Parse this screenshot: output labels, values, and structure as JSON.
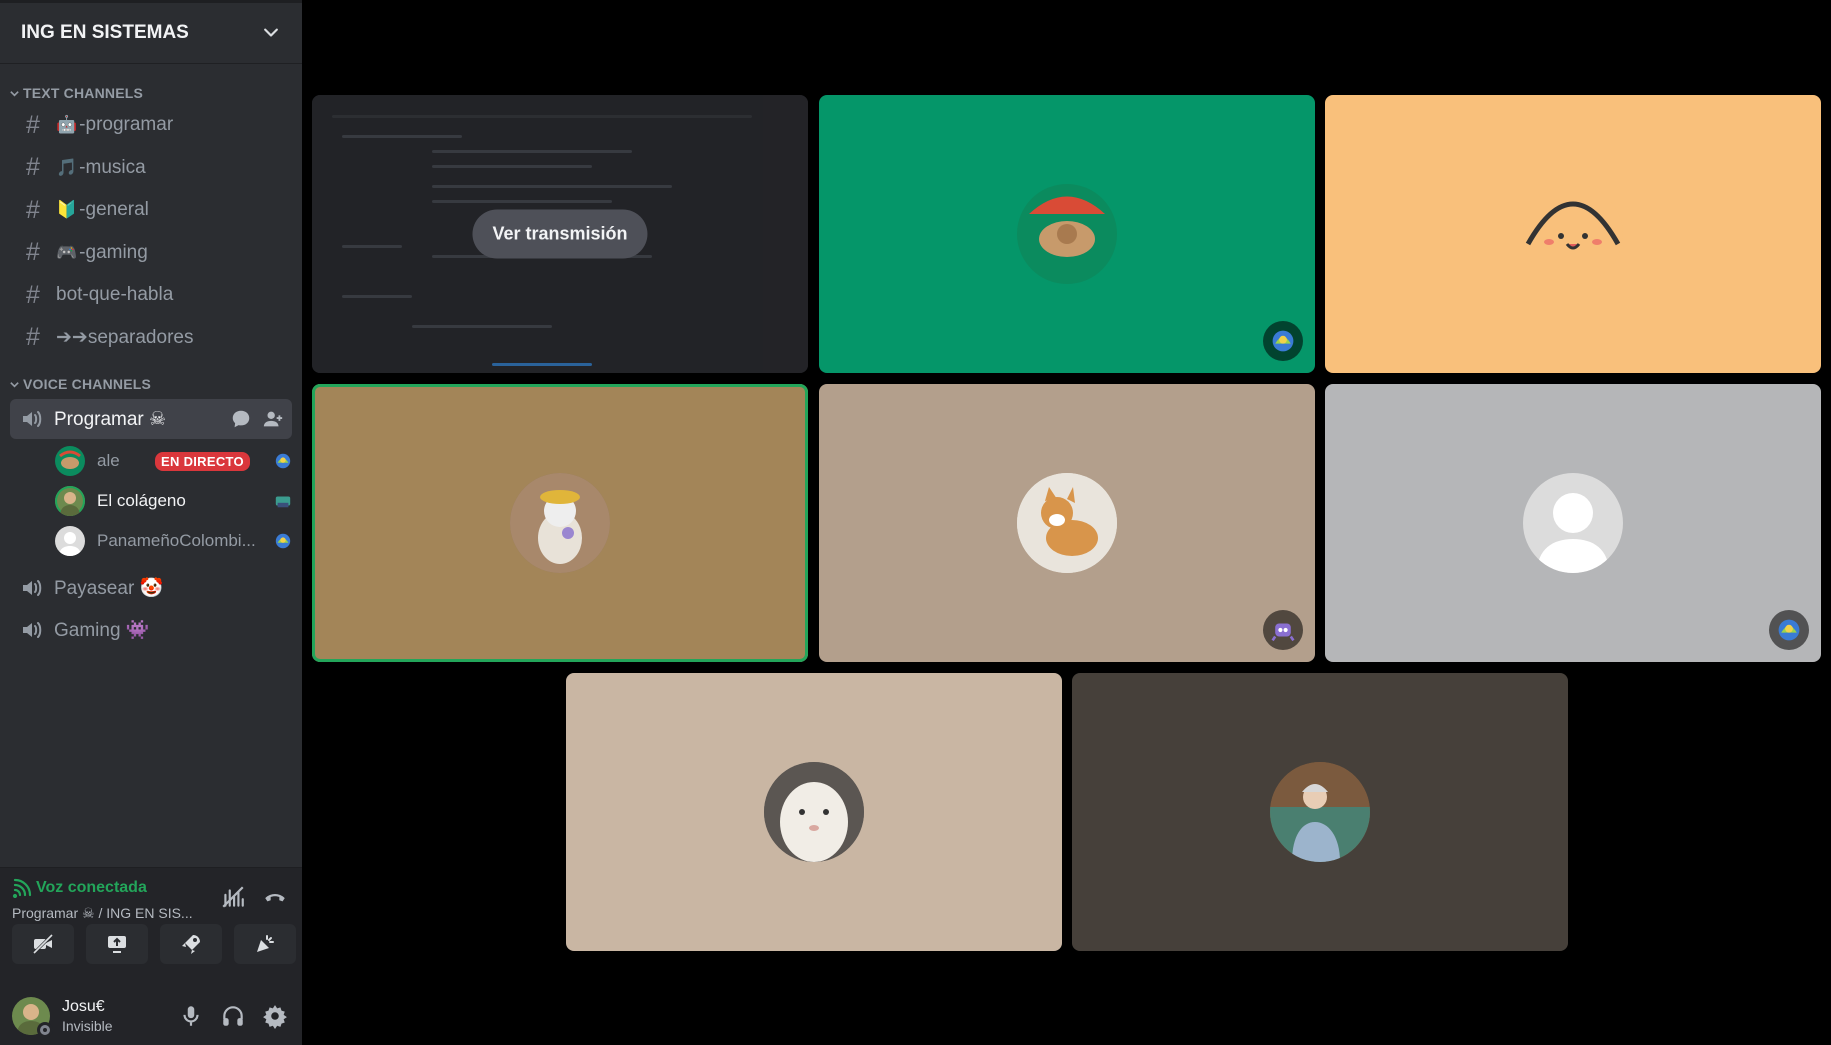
{
  "server": {
    "name": "ING EN SISTEMAS"
  },
  "text_channels": {
    "header": "TEXT CHANNELS",
    "items": [
      {
        "emoji": "🤖",
        "name": "-programar"
      },
      {
        "emoji": "🎵",
        "name": "-musica"
      },
      {
        "emoji": "🔰",
        "name": "-general"
      },
      {
        "emoji": "🎮",
        "name": "-gaming"
      },
      {
        "emoji": "",
        "name": "bot-que-habla"
      },
      {
        "emoji": "",
        "name": "➔➔separadores"
      }
    ]
  },
  "voice_channels": {
    "header": "VOICE CHANNELS",
    "active": {
      "name": "Programar ☠",
      "members": [
        {
          "name": "ale",
          "badge": "EN DIRECTO"
        },
        {
          "name": "El colágeno"
        },
        {
          "name": "PanameñoColombi..."
        }
      ]
    },
    "others": [
      {
        "name": "Payasear 🤡"
      },
      {
        "name": "Gaming 👾"
      }
    ]
  },
  "voice_panel": {
    "status": "Voz conectada",
    "sub": "Programar ☠ / ING EN SIS..."
  },
  "user": {
    "name": "Josu€",
    "status": "Invisible"
  },
  "stage": {
    "stream_button": "Ver transmisión"
  },
  "colors": {
    "sidebar_bg": "#2b2d31",
    "tile_green": "#059669",
    "tile_orange": "#f9c07b",
    "tile_brown": "#a38558",
    "tile_beige": "#b39f8c",
    "tile_gray": "#b5b6b8",
    "tile_cream": "#c9b6a3",
    "tile_dark": "#46403a",
    "accent_green": "#23a55a",
    "live_red": "#da373c"
  }
}
